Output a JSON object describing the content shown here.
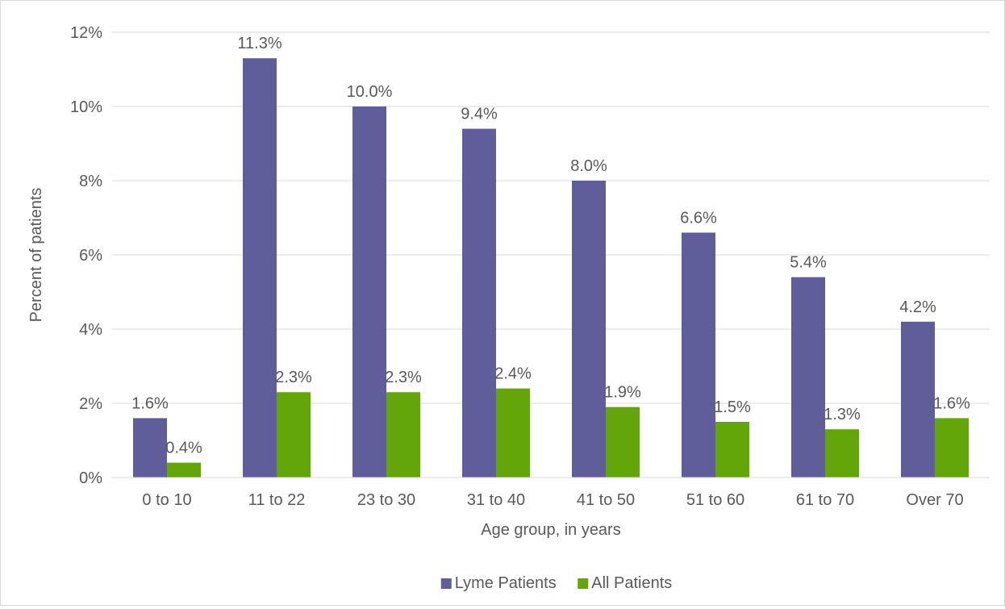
{
  "chart_data": {
    "type": "bar",
    "title": "",
    "xlabel": "Age group, in years",
    "ylabel": "Percent of patients",
    "ylim": [
      0,
      12
    ],
    "yticks": [
      "0%",
      "2%",
      "4%",
      "6%",
      "8%",
      "10%",
      "12%"
    ],
    "categories": [
      "0 to 10",
      "11 to 22",
      "23 to 30",
      "31 to 40",
      "41 to 50",
      "51 to 60",
      "61 to 70",
      "Over 70"
    ],
    "grid": true,
    "legend_position": "bottom",
    "series": [
      {
        "name": "Lyme Patients",
        "color": "#5f5e9b",
        "values": [
          1.6,
          11.3,
          10.0,
          9.4,
          8.0,
          6.6,
          5.4,
          4.2
        ],
        "labels": [
          "1.6%",
          "11.3%",
          "10.0%",
          "9.4%",
          "8.0%",
          "6.6%",
          "5.4%",
          "4.2%"
        ]
      },
      {
        "name": "All Patients",
        "color": "#62a60a",
        "values": [
          0.4,
          2.3,
          2.3,
          2.4,
          1.9,
          1.5,
          1.3,
          1.6
        ],
        "labels": [
          "0.4%",
          "2.3%",
          "2.3%",
          "2.4%",
          "1.9%",
          "1.5%",
          "1.3%",
          "1.6%"
        ]
      }
    ]
  }
}
